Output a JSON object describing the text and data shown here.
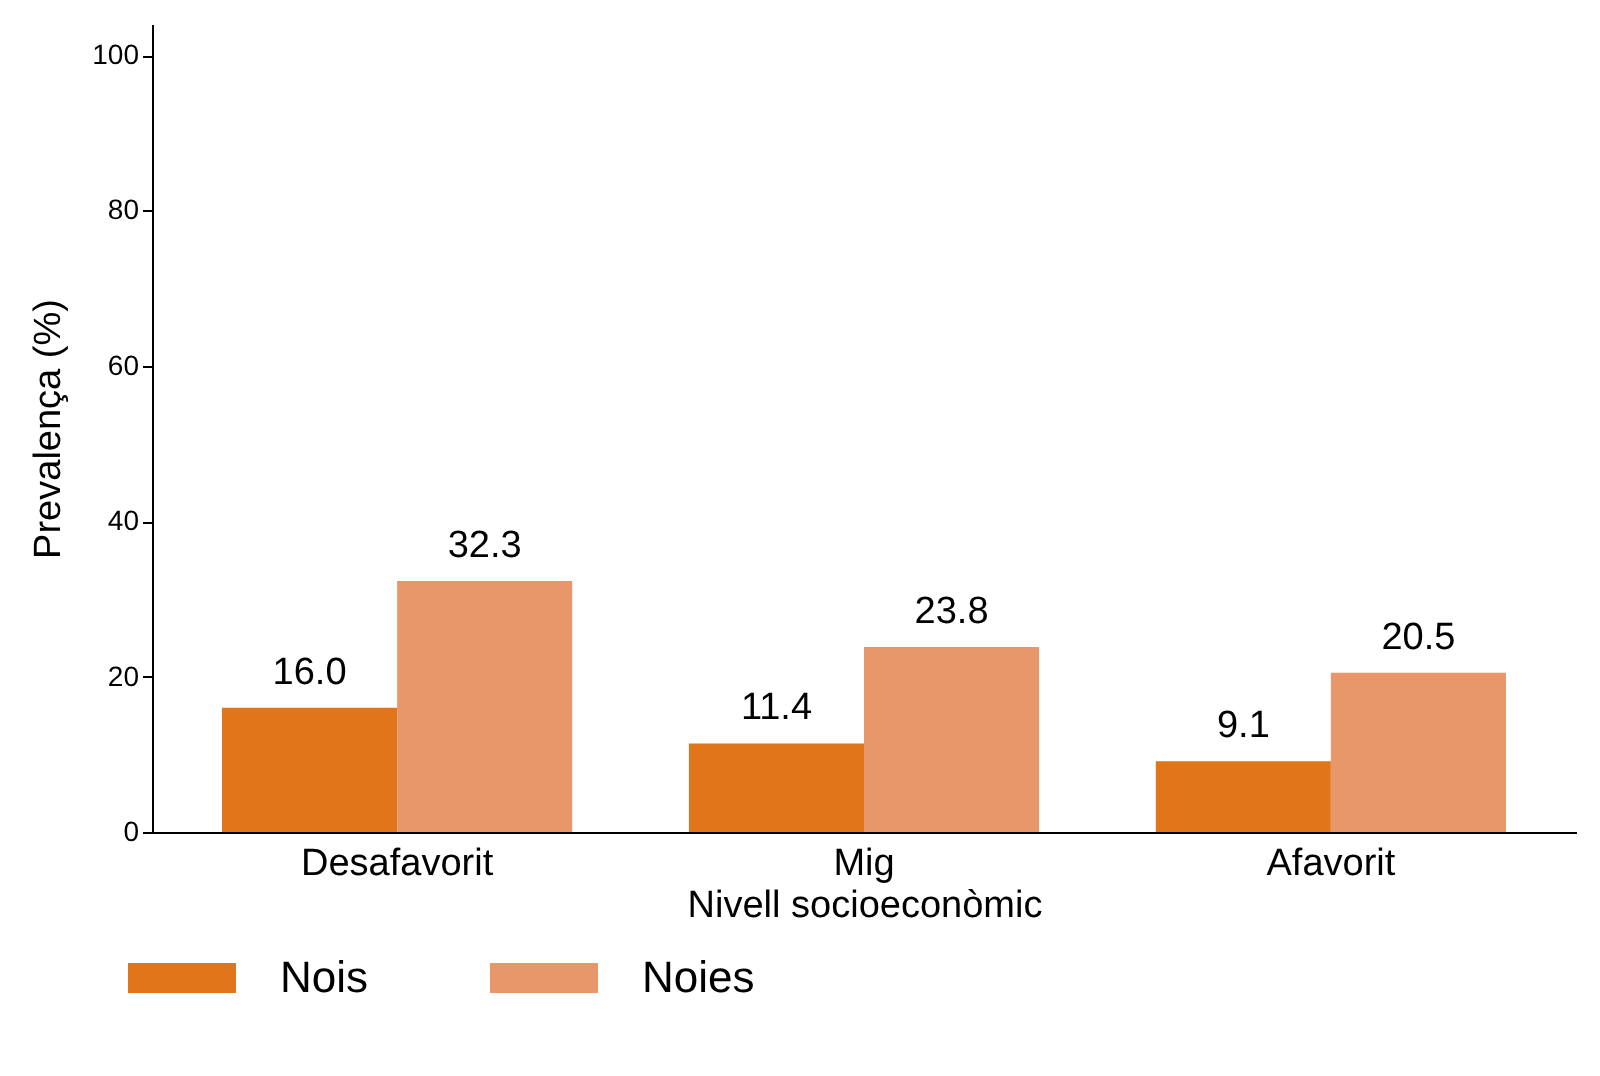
{
  "chart_data": {
    "type": "bar",
    "xlabel": "Nivell socioeconòmic",
    "ylabel": "Prevalença (%)",
    "categories": [
      "Desafavorit",
      "Mig",
      "Afavorit"
    ],
    "series": [
      {
        "name": "Nois",
        "color": "#e07519",
        "values": [
          16.0,
          11.4,
          9.1
        ],
        "value_labels": [
          "16.0",
          "11.4",
          "9.1"
        ]
      },
      {
        "name": "Noies",
        "color": "#e8976b",
        "values": [
          32.3,
          23.8,
          20.5
        ],
        "value_labels": [
          "32.3",
          "23.8",
          "20.5"
        ]
      }
    ],
    "ylim": [
      0,
      104
    ],
    "yticks": [
      0,
      20,
      40,
      60,
      80,
      100
    ],
    "grid": false,
    "legend": "bottom"
  }
}
